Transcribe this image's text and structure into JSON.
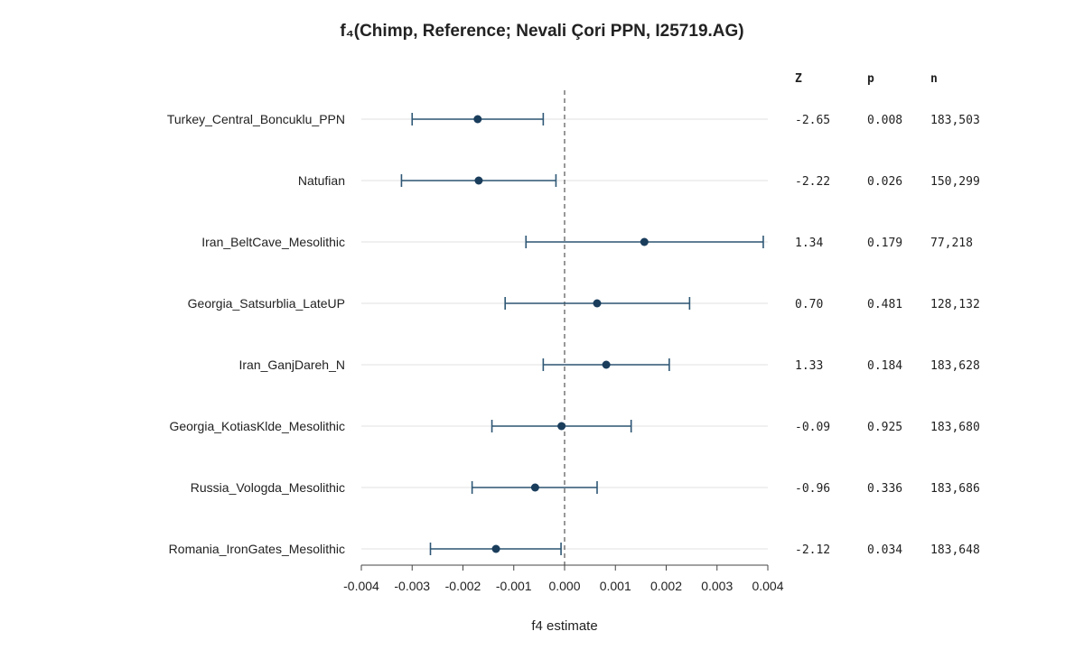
{
  "chart_data": {
    "type": "forest",
    "title": "f₄(Chimp, Reference; Nevali Çori PPN, I25719.AG)",
    "xlabel": "f4 estimate",
    "xlim": [
      -0.004,
      0.004
    ],
    "x_ticks": [
      "-0.004",
      "-0.003",
      "-0.002",
      "-0.001",
      "0.000",
      "0.001",
      "0.002",
      "0.003",
      "0.004"
    ],
    "x_tick_values": [
      -0.004,
      -0.003,
      -0.002,
      -0.001,
      0.0,
      0.001,
      0.002,
      0.003,
      0.004
    ],
    "reference_line": 0,
    "columns": [
      "Z",
      "p",
      "n"
    ],
    "point_color": "#1a3d5c",
    "bar_color": "#2e5775",
    "rows": [
      {
        "label": "Turkey_Central_Boncuklu_PPN",
        "estimate": -0.00171,
        "lower": -0.003,
        "upper": -0.00042,
        "z": "-2.65",
        "p": "0.008",
        "n": "183,503"
      },
      {
        "label": "Natufian",
        "estimate": -0.00169,
        "lower": -0.00321,
        "upper": -0.00017,
        "z": "-2.22",
        "p": "0.026",
        "n": "150,299"
      },
      {
        "label": "Iran_BeltCave_Mesolithic",
        "estimate": 0.00157,
        "lower": -0.00076,
        "upper": 0.00391,
        "z": "1.34",
        "p": "0.179",
        "n": "77,218"
      },
      {
        "label": "Georgia_Satsurblia_LateUP",
        "estimate": 0.00064,
        "lower": -0.00117,
        "upper": 0.00246,
        "z": "0.70",
        "p": "0.481",
        "n": "128,132"
      },
      {
        "label": "Iran_GanjDareh_N",
        "estimate": 0.00082,
        "lower": -0.00042,
        "upper": 0.00206,
        "z": "1.33",
        "p": "0.184",
        "n": "183,628"
      },
      {
        "label": "Georgia_KotiasKlde_Mesolithic",
        "estimate": -6e-05,
        "lower": -0.00143,
        "upper": 0.00131,
        "z": "-0.09",
        "p": "0.925",
        "n": "183,680"
      },
      {
        "label": "Russia_Vologda_Mesolithic",
        "estimate": -0.00058,
        "lower": -0.00182,
        "upper": 0.00064,
        "z": "-0.96",
        "p": "0.336",
        "n": "183,686"
      },
      {
        "label": "Romania_IronGates_Mesolithic",
        "estimate": -0.00135,
        "lower": -0.00264,
        "upper": -7e-05,
        "z": "-2.12",
        "p": "0.034",
        "n": "183,648"
      }
    ]
  }
}
